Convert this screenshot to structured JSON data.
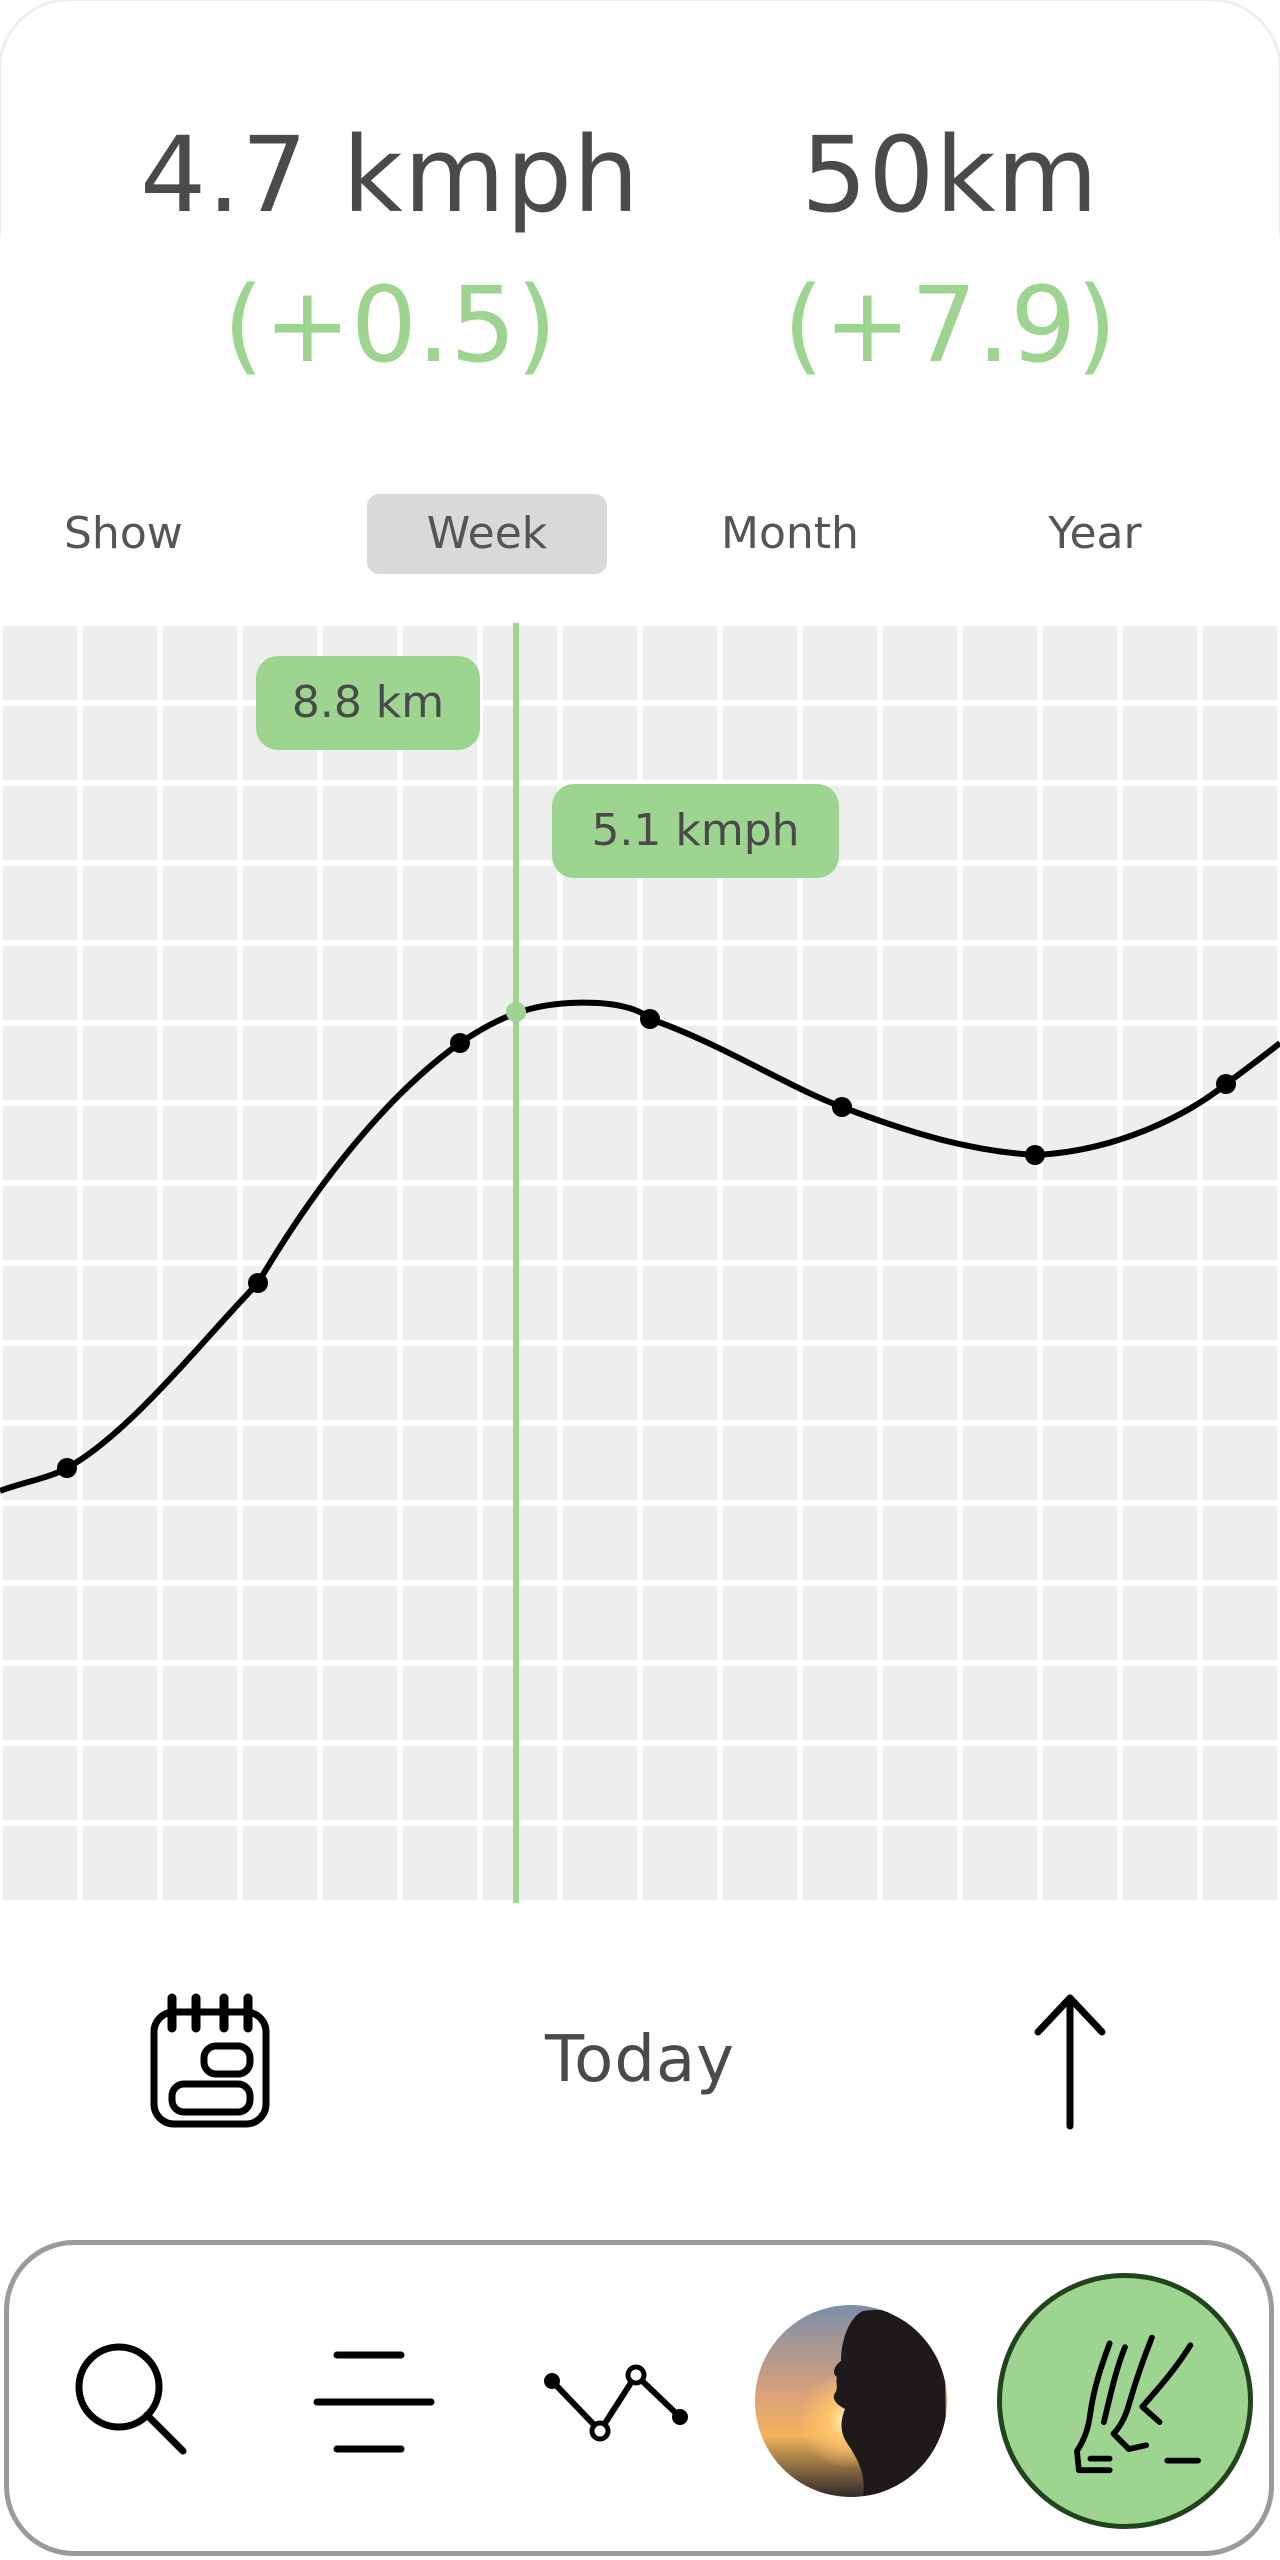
{
  "stats": {
    "speed": {
      "value": "4.7 kmph",
      "delta": "(+0.5)"
    },
    "distance": {
      "value": "50km",
      "delta": "(+7.9)"
    }
  },
  "range_tabs": {
    "items": [
      {
        "label": "Show",
        "selected": false
      },
      {
        "label": "Week",
        "selected": true
      },
      {
        "label": "Month",
        "selected": false
      },
      {
        "label": "Year",
        "selected": false
      }
    ]
  },
  "chart": {
    "selected_distance_label": "8.8 km",
    "selected_speed_label": "5.1 kmph"
  },
  "controls": {
    "today_label": "Today"
  },
  "bottom_nav": {
    "items": [
      "search-icon",
      "menu-icon",
      "trend-icon",
      "profile-avatar",
      "walking-activity-icon"
    ]
  },
  "colors": {
    "accent_green": "#9dd490",
    "accent_dark_green": "#22441d",
    "grid_background": "#eeeeee",
    "grid_lines": "#ffffff",
    "text": "#4a4a4a",
    "selected_tab": "#d9d9d9"
  }
}
